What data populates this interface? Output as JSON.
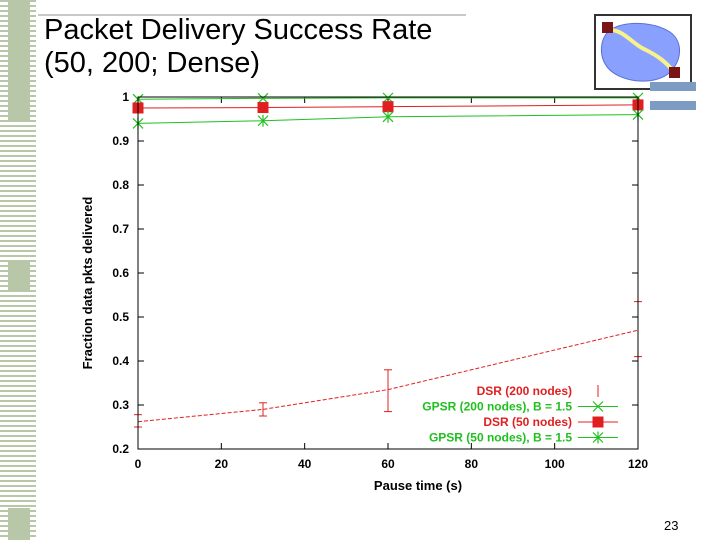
{
  "slide": {
    "title_line1": "Packet Delivery Success Rate",
    "title_line2": "(50, 200; Dense)",
    "page_number": "23"
  },
  "colors": {
    "dsr": "#e02020",
    "gpsr": "#20c020",
    "deco_bar": "#7d9cc4"
  },
  "chart_data": {
    "type": "line",
    "xlabel": "Pause time (s)",
    "ylabel": "Fraction data pkts delivered",
    "xlim": [
      0,
      120
    ],
    "ylim": [
      0.2,
      1.0
    ],
    "x_ticks": [
      "0",
      "20",
      "40",
      "60",
      "80",
      "100",
      "120"
    ],
    "y_ticks": [
      "0.2",
      "0.3",
      "0.4",
      "0.5",
      "0.6",
      "0.7",
      "0.8",
      "0.9",
      "1"
    ],
    "legend_position": "bottom-right",
    "series": [
      {
        "name": "DSR (200 nodes)",
        "marker": "errorbar",
        "x": [
          0,
          30,
          60,
          120
        ],
        "values": [
          0.262,
          0.29,
          0.335,
          0.47
        ],
        "err_low": [
          0.25,
          0.275,
          0.285,
          0.41
        ],
        "err_high": [
          0.278,
          0.305,
          0.38,
          0.535
        ]
      },
      {
        "name": "GPSR (200 nodes), B = 1.5",
        "marker": "x",
        "x": [
          0,
          30,
          60,
          120
        ],
        "values": [
          0.995,
          0.997,
          0.998,
          0.998
        ]
      },
      {
        "name": "DSR (50 nodes)",
        "marker": "square",
        "x": [
          0,
          30,
          60,
          120
        ],
        "values": [
          0.975,
          0.976,
          0.978,
          0.982
        ]
      },
      {
        "name": "GPSR (50 nodes), B = 1.5",
        "marker": "star",
        "x": [
          0,
          30,
          60,
          120
        ],
        "values": [
          0.94,
          0.946,
          0.955,
          0.96
        ]
      }
    ]
  }
}
